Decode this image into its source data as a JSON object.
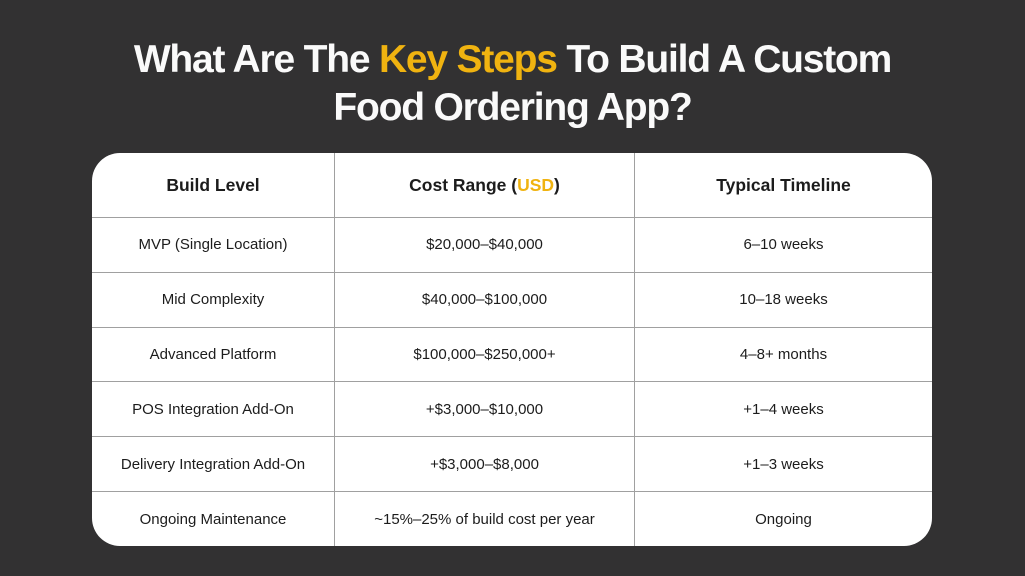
{
  "title": {
    "line1_prefix": "What Are The ",
    "highlight": "Key Steps",
    "line1_suffix": " To Build A Custom",
    "line2": "Food Ordering App?"
  },
  "colors": {
    "background": "#323132",
    "accent_yellow": "#F0B310",
    "card_background": "#FFFFFF",
    "grid_line": "#A0A0A0",
    "table_text": "#1C1C1C",
    "title_text": "#FAFAFA"
  },
  "table": {
    "header": {
      "col1": "Build Level",
      "col2_prefix": "Cost Range (",
      "col2_highlight": "USD",
      "col2_suffix": ")",
      "col3": "Typical Timeline"
    },
    "rows": [
      [
        "MVP (Single Location)",
        "$20,000–$40,000",
        "6–10 weeks"
      ],
      [
        "Mid Complexity",
        "$40,000–$100,000",
        "10–18 weeks"
      ],
      [
        "Advanced Platform",
        "$100,000–$250,000+",
        "4–8+ months"
      ],
      [
        "POS Integration Add-On",
        "+$3,000–$10,000",
        "+1–4 weeks"
      ],
      [
        "Delivery Integration Add-On",
        "+$3,000–$8,000",
        "+1–3 weeks"
      ],
      [
        "Ongoing Maintenance",
        "~15%–25% of build cost per year",
        "Ongoing"
      ]
    ]
  }
}
